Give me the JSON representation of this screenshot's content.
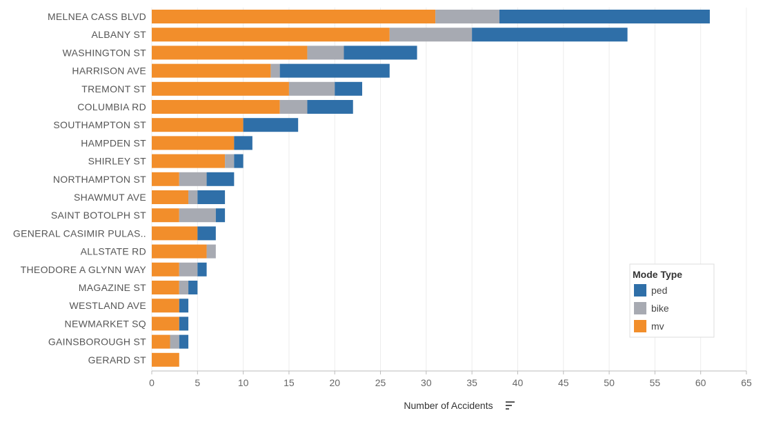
{
  "chart_data": {
    "type": "bar",
    "orientation": "horizontal",
    "stacked": true,
    "title": "",
    "xlabel": "Number of Accidents",
    "ylabel": "",
    "xlim": [
      0,
      65
    ],
    "xticks": [
      0,
      5,
      10,
      15,
      20,
      25,
      30,
      35,
      40,
      45,
      50,
      55,
      60,
      65
    ],
    "grid": "vertical",
    "legend": {
      "title": "Mode Type",
      "placement": "bottom-right"
    },
    "categories": [
      "MELNEA CASS BLVD",
      "ALBANY ST",
      "WASHINGTON ST",
      "HARRISON AVE",
      "TREMONT ST",
      "COLUMBIA RD",
      "SOUTHAMPTON ST",
      "HAMPDEN ST",
      "SHIRLEY ST",
      "NORTHAMPTON ST",
      "SHAWMUT AVE",
      "SAINT BOTOLPH ST",
      "GENERAL CASIMIR PULAS..",
      "ALLSTATE RD",
      "THEODORE A GLYNN WAY",
      "MAGAZINE ST",
      "WESTLAND AVE",
      "NEWMARKET SQ",
      "GAINSBOROUGH ST",
      "GERARD ST"
    ],
    "series": [
      {
        "name": "mv",
        "color": "#f28e2b",
        "values": [
          31,
          26,
          17,
          13,
          15,
          14,
          10,
          9,
          8,
          3,
          4,
          3,
          5,
          6,
          3,
          3,
          3,
          3,
          2,
          3
        ]
      },
      {
        "name": "bike",
        "color": "#a7aab2",
        "values": [
          7,
          9,
          4,
          1,
          5,
          3,
          0,
          0,
          1,
          3,
          1,
          4,
          0,
          1,
          2,
          1,
          0,
          0,
          1,
          0
        ]
      },
      {
        "name": "ped",
        "color": "#2f6fa8",
        "values": [
          23,
          17,
          8,
          12,
          3,
          5,
          6,
          2,
          1,
          3,
          3,
          1,
          2,
          0,
          1,
          1,
          1,
          1,
          1,
          0
        ]
      }
    ],
    "legend_order": [
      "ped",
      "bike",
      "mv"
    ],
    "sort_icon": "sort-descending-icon"
  }
}
